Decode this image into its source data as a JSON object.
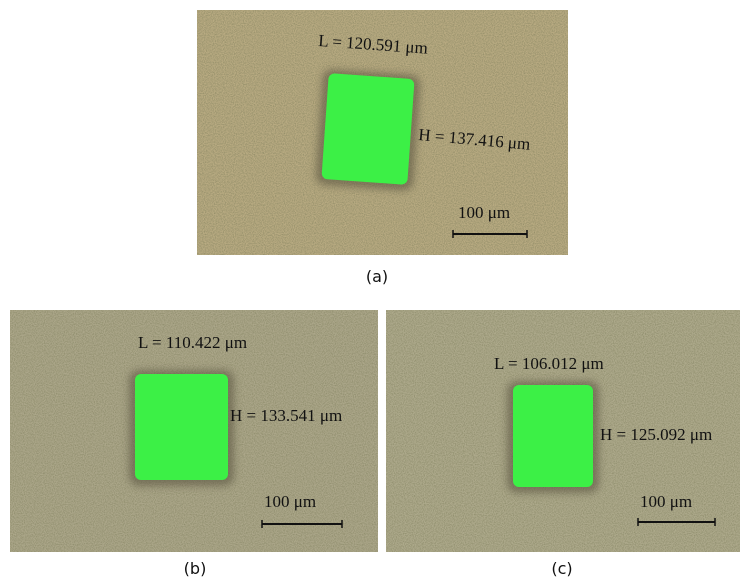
{
  "panels": [
    {
      "label": "(a)",
      "length": "L = 120.591 μm",
      "height": "H = 137.416 μm",
      "scale": "100 μm"
    },
    {
      "label": "(b)",
      "length": "L = 110.422 μm",
      "height": "H = 133.541 μm",
      "scale": "100 μm"
    },
    {
      "label": "(c)",
      "length": "L = 106.012 μm",
      "height": "H = 125.092 μm",
      "scale": "100 μm"
    }
  ]
}
